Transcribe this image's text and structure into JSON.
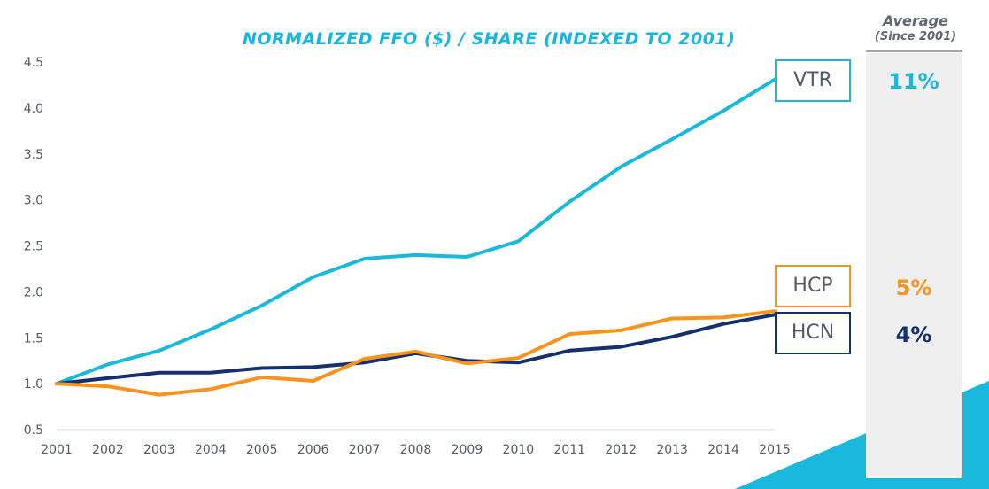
{
  "average": {
    "title": "Average",
    "subtitle": "(Since 2001)"
  },
  "colors": {
    "VTR": "#1ab8dc",
    "HCP": "#f7931e",
    "HCN": "#14306e",
    "axis_text": "#555b62",
    "accent": "#17b6dc"
  },
  "legend": [
    {
      "ticker": "VTR",
      "avg_growth": "11%"
    },
    {
      "ticker": "HCP",
      "avg_growth": "5%"
    },
    {
      "ticker": "HCN",
      "avg_growth": "4%"
    }
  ],
  "chart_data": {
    "type": "line",
    "title": "NORMALIZED FFO ($) / SHARE (INDEXED TO 2001)",
    "xlabel": "",
    "ylabel": "",
    "x": [
      2001,
      2002,
      2003,
      2004,
      2005,
      2006,
      2007,
      2008,
      2009,
      2010,
      2011,
      2012,
      2013,
      2014,
      2015
    ],
    "xlim": [
      2001,
      2015
    ],
    "ylim": [
      0.5,
      4.5
    ],
    "yticks": [
      "0.5",
      "1.0",
      "1.5",
      "2.0",
      "2.5",
      "3.0",
      "3.5",
      "4.0",
      "4.5"
    ],
    "grid": false,
    "series": [
      {
        "name": "VTR",
        "values": [
          1.0,
          1.21,
          1.36,
          1.59,
          1.85,
          2.16,
          2.36,
          2.4,
          2.38,
          2.55,
          2.98,
          3.36,
          3.66,
          3.97,
          4.31
        ]
      },
      {
        "name": "HCP",
        "values": [
          1.0,
          0.97,
          0.88,
          0.94,
          1.07,
          1.03,
          1.27,
          1.35,
          1.22,
          1.28,
          1.54,
          1.58,
          1.71,
          1.72,
          1.79
        ]
      },
      {
        "name": "HCN",
        "values": [
          1.0,
          1.06,
          1.12,
          1.12,
          1.17,
          1.18,
          1.23,
          1.33,
          1.25,
          1.23,
          1.36,
          1.4,
          1.51,
          1.65,
          1.75
        ]
      }
    ]
  }
}
